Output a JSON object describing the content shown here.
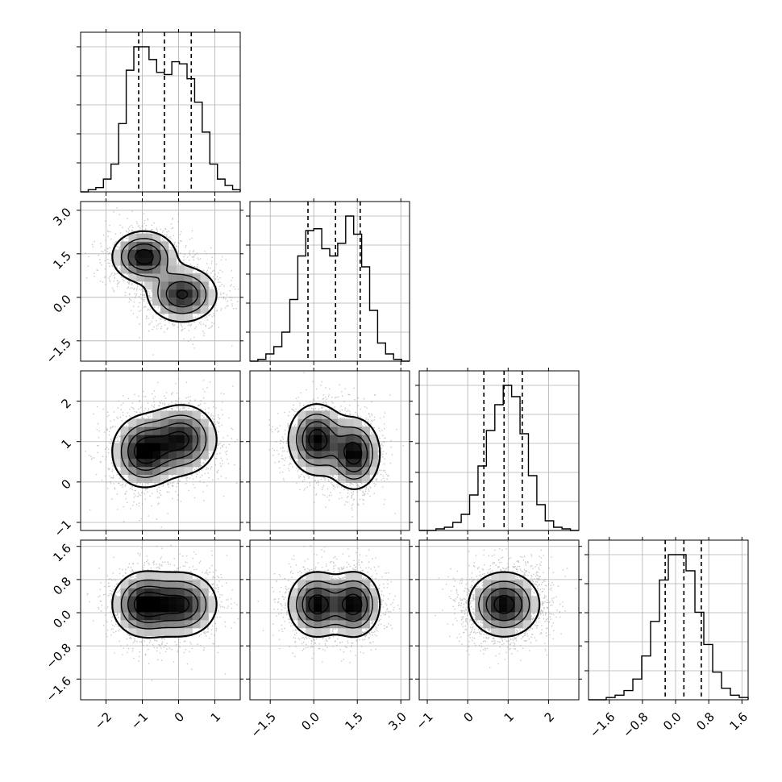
{
  "chart_data": {
    "type": "corner",
    "style": {
      "hist_color": "#000000",
      "grid_color": "#b0b0b0",
      "density_color": "#000000",
      "point_color": "#9a9a9a",
      "background": "#ffffff"
    },
    "parameters": [
      {
        "range": [
          -2.7,
          1.7
        ],
        "ticks": [
          -2,
          -1,
          0,
          1
        ],
        "tick_labels": [
          "−2",
          "−1",
          "0",
          "1"
        ],
        "quantiles": [
          -1.1,
          -0.39,
          0.35
        ]
      },
      {
        "range": [
          -2.2,
          3.3
        ],
        "ticks": [
          -1.5,
          0.0,
          1.5,
          3.0
        ],
        "tick_labels": [
          "−1.5",
          "0.0",
          "1.5",
          "3.0"
        ],
        "quantiles": [
          -0.2,
          0.75,
          1.6
        ]
      },
      {
        "range": [
          -1.2,
          2.75
        ],
        "ticks": [
          -1,
          0,
          1,
          2
        ],
        "tick_labels": [
          "−1",
          "0",
          "1",
          "2"
        ],
        "quantiles": [
          0.4,
          0.9,
          1.35
        ]
      },
      {
        "range": [
          -2.1,
          1.75
        ],
        "ticks": [
          -1.6,
          -0.8,
          0.0,
          0.8,
          1.6
        ],
        "tick_labels": [
          "−1.6",
          "−0.8",
          "0.0",
          "0.8",
          "1.6"
        ],
        "quantiles": [
          -0.25,
          0.2,
          0.62
        ]
      }
    ],
    "histograms": [
      [
        0,
        1,
        2,
        6,
        13,
        32,
        57,
        68,
        68,
        62,
        56,
        55,
        61,
        60,
        53,
        42,
        28,
        13,
        6,
        3,
        1
      ],
      [
        0,
        1,
        4,
        8,
        16,
        34,
        58,
        72,
        73,
        62,
        58,
        65,
        80,
        70,
        52,
        28,
        10,
        4,
        1,
        0
      ],
      [
        0,
        0,
        1,
        2,
        5,
        10,
        22,
        40,
        62,
        78,
        90,
        83,
        60,
        34,
        16,
        6,
        2,
        1,
        0
      ],
      [
        0,
        0,
        1,
        2,
        4,
        9,
        19,
        34,
        52,
        63,
        63,
        56,
        38,
        24,
        12,
        5,
        2,
        1
      ]
    ],
    "pair_density": [
      {
        "pair": [
          1,
          0
        ],
        "components": [
          {
            "mean": [
              -0.95,
              1.4
            ],
            "sd": [
              0.45,
              0.45
            ],
            "weight": 1.0
          },
          {
            "mean": [
              0.1,
              0.1
            ],
            "sd": [
              0.5,
              0.5
            ],
            "weight": 0.9
          }
        ]
      },
      {
        "pair": [
          2,
          0
        ],
        "components": [
          {
            "mean": [
              -0.95,
              0.75
            ],
            "sd": [
              0.45,
              0.45
            ],
            "weight": 1.0
          },
          {
            "mean": [
              0.1,
              1.05
            ],
            "sd": [
              0.5,
              0.45
            ],
            "weight": 0.9
          }
        ]
      },
      {
        "pair": [
          2,
          1
        ],
        "components": [
          {
            "mean": [
              0.1,
              1.05
            ],
            "sd": [
              0.5,
              0.45
            ],
            "weight": 1.0
          },
          {
            "mean": [
              1.4,
              0.7
            ],
            "sd": [
              0.45,
              0.45
            ],
            "weight": 1.0
          }
        ]
      },
      {
        "pair": [
          3,
          0
        ],
        "components": [
          {
            "mean": [
              -0.95,
              0.2
            ],
            "sd": [
              0.45,
              0.4
            ],
            "weight": 1.0
          },
          {
            "mean": [
              0.1,
              0.2
            ],
            "sd": [
              0.5,
              0.4
            ],
            "weight": 0.9
          }
        ]
      },
      {
        "pair": [
          3,
          1
        ],
        "components": [
          {
            "mean": [
              0.1,
              0.2
            ],
            "sd": [
              0.5,
              0.4
            ],
            "weight": 1.0
          },
          {
            "mean": [
              1.4,
              0.2
            ],
            "sd": [
              0.45,
              0.4
            ],
            "weight": 1.0
          }
        ]
      },
      {
        "pair": [
          3,
          2
        ],
        "components": [
          {
            "mean": [
              0.9,
              0.2
            ],
            "sd": [
              0.45,
              0.4
            ],
            "weight": 1.0
          }
        ]
      }
    ]
  }
}
